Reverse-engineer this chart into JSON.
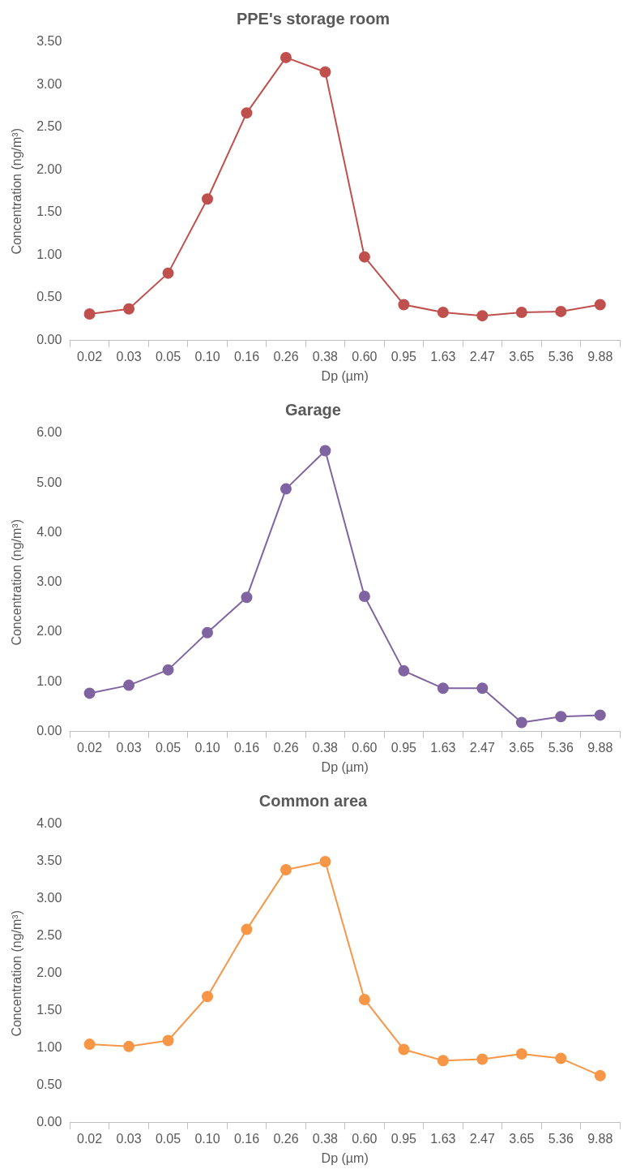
{
  "chart_data": [
    {
      "type": "line",
      "title": "PPE's storage room",
      "xlabel": "Dp (µm)",
      "ylabel": "Concentration (ng/m³)",
      "categories": [
        "0.02",
        "0.03",
        "0.05",
        "0.10",
        "0.16",
        "0.26",
        "0.38",
        "0.60",
        "0.95",
        "1.63",
        "2.47",
        "3.65",
        "5.36",
        "9.88"
      ],
      "series": [
        {
          "color": "#c0504d",
          "values": [
            0.31,
            0.37,
            0.79,
            1.66,
            2.67,
            3.32,
            3.15,
            0.98,
            0.42,
            0.33,
            0.29,
            0.33,
            0.34,
            0.42
          ]
        }
      ],
      "ylim": [
        0,
        3.5
      ],
      "yticks": [
        {
          "value": 0,
          "label": "0.00"
        },
        {
          "value": 0.5,
          "label": "0.50"
        },
        {
          "value": 1,
          "label": "1.00"
        },
        {
          "value": 1.5,
          "label": "1.50"
        },
        {
          "value": 2,
          "label": "2.00"
        },
        {
          "value": 2.5,
          "label": "2.50"
        },
        {
          "value": 3,
          "label": "3.00"
        },
        {
          "value": 3.5,
          "label": "3.50"
        }
      ],
      "marker": "circle",
      "legend": false,
      "grid": false
    },
    {
      "type": "line",
      "title": "Garage",
      "xlabel": "Dp (µm)",
      "ylabel": "Concentration (ng/m³)",
      "categories": [
        "0.02",
        "0.03",
        "0.05",
        "0.10",
        "0.16",
        "0.26",
        "0.38",
        "0.60",
        "0.95",
        "1.63",
        "2.47",
        "3.65",
        "5.36",
        "9.88"
      ],
      "series": [
        {
          "color": "#8064a2",
          "values": [
            0.77,
            0.93,
            1.24,
            1.99,
            2.7,
            4.88,
            5.65,
            2.72,
            1.22,
            0.87,
            0.87,
            0.18,
            0.3,
            0.33
          ]
        }
      ],
      "ylim": [
        0,
        6
      ],
      "yticks": [
        {
          "value": 0,
          "label": "0.00"
        },
        {
          "value": 1,
          "label": "1.00"
        },
        {
          "value": 2,
          "label": "2.00"
        },
        {
          "value": 3,
          "label": "3.00"
        },
        {
          "value": 4,
          "label": "4.00"
        },
        {
          "value": 5,
          "label": "5.00"
        },
        {
          "value": 6,
          "label": "6.00"
        }
      ],
      "marker": "circle",
      "legend": false,
      "grid": false
    },
    {
      "type": "line",
      "title": "Common area",
      "xlabel": "Dp (µm)",
      "ylabel": "Concentration (ng/m³)",
      "categories": [
        "0.02",
        "0.03",
        "0.05",
        "0.10",
        "0.16",
        "0.26",
        "0.38",
        "0.60",
        "0.95",
        "1.63",
        "2.47",
        "3.65",
        "5.36",
        "9.88"
      ],
      "series": [
        {
          "color": "#f79646",
          "values": [
            1.05,
            1.02,
            1.1,
            1.69,
            2.59,
            3.39,
            3.5,
            1.65,
            0.98,
            0.83,
            0.85,
            0.92,
            0.86,
            0.63
          ]
        }
      ],
      "ylim": [
        0,
        4
      ],
      "yticks": [
        {
          "value": 0,
          "label": "0.00"
        },
        {
          "value": 0.5,
          "label": "0.50"
        },
        {
          "value": 1,
          "label": "1.00"
        },
        {
          "value": 1.5,
          "label": "1.50"
        },
        {
          "value": 2,
          "label": "2.00"
        },
        {
          "value": 2.5,
          "label": "2.50"
        },
        {
          "value": 3,
          "label": "3.00"
        },
        {
          "value": 3.5,
          "label": "3.50"
        },
        {
          "value": 4,
          "label": "4.00"
        }
      ],
      "marker": "circle",
      "legend": false,
      "grid": false
    }
  ]
}
